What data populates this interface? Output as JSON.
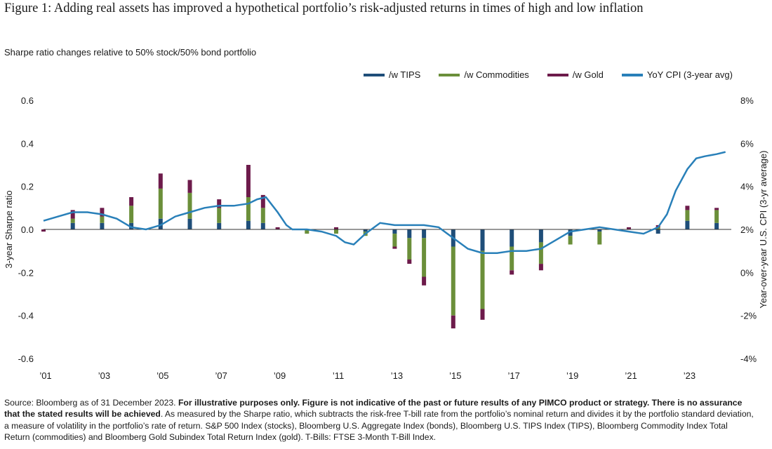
{
  "title": "Figure 1: Adding real assets has improved a hypothetical portfolio’s risk-adjusted returns in times of high and low inflation",
  "subtitle": "Sharpe ratio changes relative to 50% stock/50% bond portfolio",
  "legend": [
    {
      "label": "/w TIPS",
      "color": "#1f4e79"
    },
    {
      "label": "/w Commodities",
      "color": "#6b8f3a"
    },
    {
      "label": "/w Gold",
      "color": "#6d1b4b"
    },
    {
      "label": "YoY CPI (3-year avg)",
      "color": "#2980b9"
    }
  ],
  "footnote": {
    "source": "Source: Bloomberg as of 31 December 2023. ",
    "bold": "For illustrative purposes only. Figure is not indicative of the past or future results of any PIMCO product or strategy. There is no assurance that the stated results will be achieved",
    "rest": ". As measured by the Sharpe ratio, which subtracts the risk-free T-bill rate from the portfolio’s nominal return and divides it by the portfolio standard deviation, a measure of volatility in the portfolio’s rate of return. S&P 500 Index (stocks), Bloomberg U.S. Aggregate Index (bonds), Bloomberg U.S. TIPS Index (TIPS), Bloomberg Commodity Index Total Return (commodities) and Bloomberg Gold Subindex Total Return Index (gold). T-Bills: FTSE 3-Month T-Bill Index."
  },
  "chart_data": {
    "type": "bar",
    "title": "Figure 1: Adding real assets has improved a hypothetical portfolio’s risk-adjusted returns in times of high and low inflation",
    "ylabel": "3-year Sharpe ratio",
    "y2label": "Year-over-year U.S. CPI (3-yr average)",
    "ylim": [
      -0.6,
      0.6
    ],
    "y2lim": [
      -4,
      8
    ],
    "yticks": [
      "0.6",
      "0.4",
      "0.2",
      "0.0",
      "-0.2",
      "-0.4",
      "-0.6"
    ],
    "y2ticks": [
      "8%",
      "6%",
      "4%",
      "2%",
      "0%",
      "-2%",
      "-4%"
    ],
    "xticks": [
      "’01",
      "’03",
      "’05",
      "’07",
      "’09",
      "’11",
      "’13",
      "’15",
      "’17",
      "’19",
      "’21",
      "’23"
    ],
    "xlim": [
      2001.0,
      2024.5
    ],
    "bar_series": [
      {
        "name": "/w TIPS",
        "color": "#1f4e79",
        "x": [
          2001.0,
          2002.0,
          2003.0,
          2004.0,
          2005.0,
          2006.0,
          2007.0,
          2008.0,
          2008.5,
          2009.0,
          2010.0,
          2011.0,
          2012.0,
          2013.0,
          2013.5,
          2014.0,
          2015.0,
          2016.0,
          2017.0,
          2018.0,
          2019.0,
          2020.0,
          2021.0,
          2022.0,
          2023.0,
          2024.0
        ],
        "y": [
          0.0,
          0.03,
          0.03,
          0.03,
          0.05,
          0.05,
          0.03,
          0.04,
          0.03,
          0.0,
          0.0,
          0.0,
          -0.01,
          -0.02,
          -0.04,
          -0.04,
          -0.08,
          -0.1,
          -0.08,
          -0.06,
          -0.03,
          -0.01,
          0.0,
          -0.02,
          0.04,
          0.03
        ]
      },
      {
        "name": "/w Commodities",
        "color": "#6b8f3a",
        "x": [
          2001.0,
          2002.0,
          2003.0,
          2004.0,
          2005.0,
          2006.0,
          2007.0,
          2008.0,
          2008.5,
          2009.0,
          2010.0,
          2011.0,
          2012.0,
          2013.0,
          2013.5,
          2014.0,
          2015.0,
          2016.0,
          2017.0,
          2018.0,
          2019.0,
          2020.0,
          2021.0,
          2022.0,
          2023.0,
          2024.0
        ],
        "y": [
          0.0,
          0.02,
          0.03,
          0.08,
          0.14,
          0.12,
          0.07,
          0.11,
          0.07,
          0.0,
          -0.02,
          -0.02,
          -0.02,
          -0.06,
          -0.1,
          -0.18,
          -0.32,
          -0.27,
          -0.11,
          -0.1,
          -0.04,
          -0.06,
          0.0,
          0.01,
          0.05,
          0.06
        ]
      },
      {
        "name": "/w Gold",
        "color": "#6d1b4b",
        "x": [
          2001.0,
          2002.0,
          2003.0,
          2004.0,
          2005.0,
          2006.0,
          2007.0,
          2008.0,
          2008.5,
          2009.0,
          2010.0,
          2011.0,
          2012.0,
          2013.0,
          2013.5,
          2014.0,
          2015.0,
          2016.0,
          2017.0,
          2018.0,
          2019.0,
          2020.0,
          2021.0,
          2022.0,
          2023.0,
          2024.0
        ],
        "y": [
          -0.01,
          0.04,
          0.04,
          0.04,
          0.07,
          0.06,
          0.04,
          0.15,
          0.06,
          0.01,
          0.0,
          0.01,
          0.0,
          -0.01,
          -0.02,
          -0.04,
          -0.06,
          -0.05,
          -0.02,
          -0.03,
          0.0,
          0.0,
          0.01,
          0.01,
          0.02,
          0.01
        ]
      }
    ],
    "line_series": {
      "name": "YoY CPI (3-year avg)",
      "color": "#2980b9",
      "axis": "right",
      "x": [
        2001.0,
        2001.5,
        2002.0,
        2002.5,
        2003.0,
        2003.5,
        2004.0,
        2004.5,
        2005.0,
        2005.5,
        2006.0,
        2006.5,
        2007.0,
        2007.5,
        2008.0,
        2008.3,
        2008.6,
        2009.0,
        2009.3,
        2009.5,
        2010.0,
        2010.5,
        2011.0,
        2011.3,
        2011.6,
        2012.0,
        2012.5,
        2013.0,
        2013.5,
        2014.0,
        2014.5,
        2015.0,
        2015.5,
        2016.0,
        2016.5,
        2017.0,
        2017.5,
        2018.0,
        2018.5,
        2019.0,
        2019.5,
        2020.0,
        2020.5,
        2021.0,
        2021.5,
        2022.0,
        2022.3,
        2022.6,
        2023.0,
        2023.3,
        2023.6,
        2024.0,
        2024.3
      ],
      "y": [
        2.4,
        2.6,
        2.8,
        2.8,
        2.7,
        2.5,
        2.1,
        2.0,
        2.2,
        2.6,
        2.8,
        3.0,
        3.1,
        3.1,
        3.2,
        3.4,
        3.5,
        2.8,
        2.2,
        2.0,
        2.0,
        1.9,
        1.7,
        1.4,
        1.3,
        1.8,
        2.3,
        2.2,
        2.2,
        2.2,
        2.1,
        1.6,
        1.1,
        0.9,
        0.9,
        1.0,
        1.0,
        1.1,
        1.5,
        1.9,
        2.0,
        2.1,
        2.0,
        1.9,
        1.8,
        2.1,
        2.7,
        3.8,
        4.8,
        5.3,
        5.4,
        5.5,
        5.6
      ]
    }
  }
}
